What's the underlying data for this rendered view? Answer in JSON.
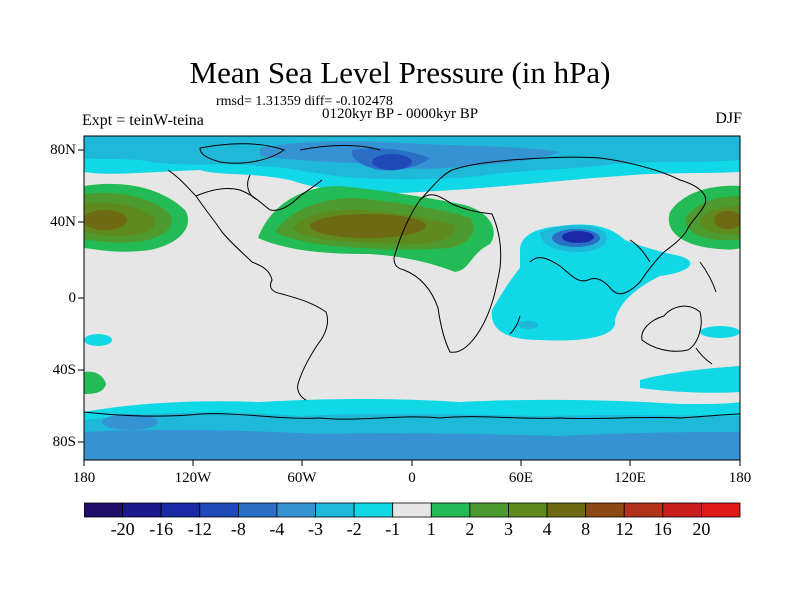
{
  "title": "Mean Sea Level Pressure (in hPa)",
  "stats": "rmsd= 1.31359 diff= -0.102478",
  "period": "0120kyr BP - 0000kyr BP",
  "experiment": "Expt = teinW-teina",
  "season": "DJF",
  "map": {
    "projection": "cylindrical equidistant",
    "lat_range": [
      -90,
      90
    ],
    "lon_range": [
      -180,
      180
    ],
    "lat_labels": [
      "80N",
      "40N",
      "0",
      "40S",
      "80S"
    ],
    "lon_labels": [
      "180",
      "120W",
      "60W",
      "0",
      "60E",
      "120E",
      "180"
    ]
  },
  "colorbar": {
    "labels": [
      "-20",
      "-16",
      "-12",
      "-8",
      "-4",
      "-3",
      "-2",
      "-1",
      "1",
      "2",
      "3",
      "4",
      "8",
      "12",
      "16",
      "20"
    ],
    "colors": [
      "#20106a",
      "#1a1a8c",
      "#1a2aa6",
      "#1f4ab8",
      "#2a6ec6",
      "#3593d4",
      "#1fb8d8",
      "#10d8e6",
      "#e6e6e6",
      "#22bb55",
      "#4e9a2e",
      "#5e8a1e",
      "#6e6a14",
      "#8e4a12",
      "#b0321a",
      "#c81e1e",
      "#e01818"
    ]
  },
  "colors": {
    "background": "#e6e6e6",
    "coast": "#000000"
  }
}
